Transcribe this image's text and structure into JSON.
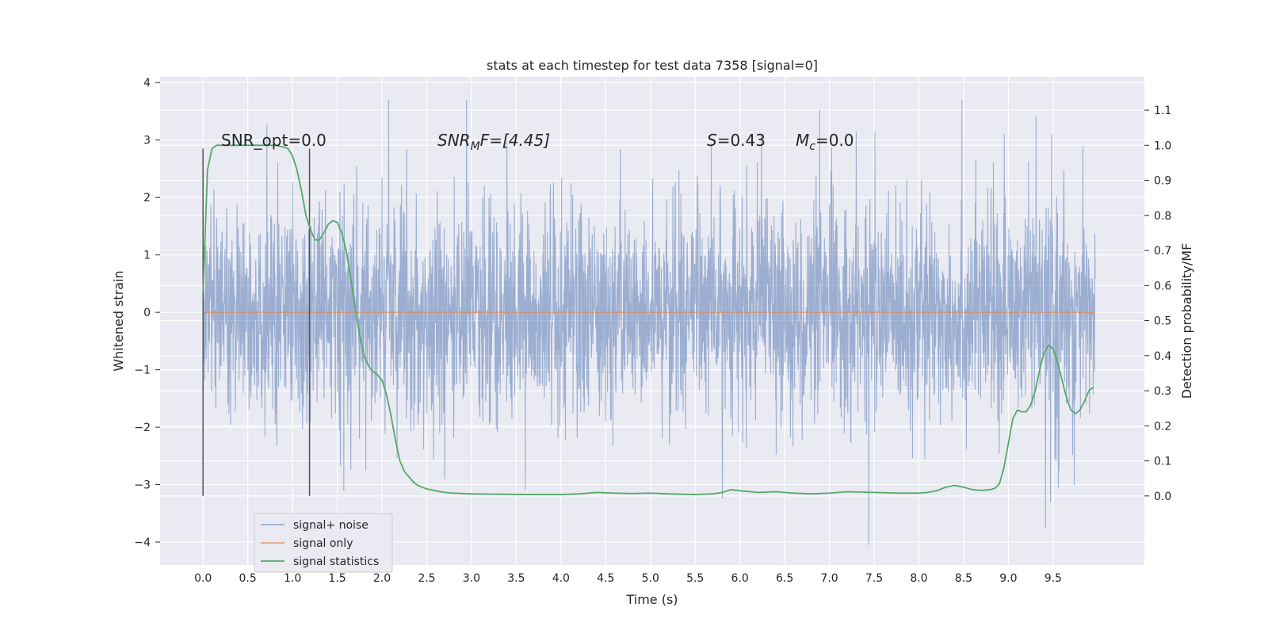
{
  "chart_data": {
    "type": "line",
    "title": "stats at each timestep for test data 7358 [signal=0]",
    "xlabel": "Time (s)",
    "ylabel": "Whitened strain",
    "y2label": "Detection probability/MF",
    "xlim": [
      -0.48,
      10.52
    ],
    "ylim": [
      -4.4,
      4.1
    ],
    "y2lim": [
      -0.197,
      1.195
    ],
    "x_ticks": [
      "0.0",
      "0.5",
      "1.0",
      "1.5",
      "2.0",
      "2.5",
      "3.0",
      "3.5",
      "4.0",
      "4.5",
      "5.0",
      "5.5",
      "6.0",
      "6.5",
      "7.0",
      "7.5",
      "8.0",
      "8.5",
      "9.0",
      "9.5"
    ],
    "y_ticks": [
      "4",
      "3",
      "2",
      "1",
      "0",
      "−1",
      "−2",
      "−3",
      "−4"
    ],
    "y2_ticks": [
      "1.1",
      "1.0",
      "0.9",
      "0.8",
      "0.7",
      "0.6",
      "0.5",
      "0.4",
      "0.3",
      "0.2",
      "0.1",
      "0.0"
    ],
    "grid": true,
    "legend_position": "lower-left",
    "colors": {
      "background": "#eaeaf2",
      "noise": "#4c72b0",
      "signal_only": "#dd8452",
      "statistics": "#55a868",
      "markers": "#555555"
    },
    "annotations": {
      "snr_opt": "SNR_opt=0.0",
      "snr_mf_prefix": "SNR",
      "snr_mf_sub": "M",
      "snr_mf_suffix": "F=[4.45]",
      "s_label": "S",
      "s_value": "=0.43",
      "mc_label": "M",
      "mc_sub": "c",
      "mc_value": "=0.0"
    },
    "vertical_markers": [
      {
        "x": 0.0,
        "ymin": -3.2,
        "ymax": 2.85
      },
      {
        "x": 1.19,
        "ymin": -3.2,
        "ymax": 2.85
      }
    ],
    "series": [
      {
        "name": "signal+ noise",
        "x_range": [
          0.0,
          9.97
        ],
        "envelope_typical": 1.6,
        "envelope_max": 3.7,
        "envelope_min": -4.05
      },
      {
        "name": "signal only",
        "x": [
          0.0,
          9.97
        ],
        "y": [
          0.0,
          0.0
        ]
      },
      {
        "name": "signal statistics",
        "axis": "right",
        "x": [
          0.0,
          0.05,
          0.1,
          0.15,
          0.2,
          0.3,
          0.4,
          0.5,
          0.6,
          0.7,
          0.8,
          0.9,
          0.95,
          1.0,
          1.05,
          1.1,
          1.15,
          1.2,
          1.25,
          1.3,
          1.35,
          1.4,
          1.45,
          1.5,
          1.55,
          1.6,
          1.65,
          1.7,
          1.75,
          1.8,
          1.85,
          1.9,
          1.95,
          2.0,
          2.05,
          2.1,
          2.15,
          2.2,
          2.25,
          2.3,
          2.35,
          2.4,
          2.5,
          2.6,
          2.7,
          2.8,
          3.0,
          3.3,
          3.7,
          4.0,
          4.2,
          4.4,
          4.6,
          4.8,
          5.0,
          5.2,
          5.5,
          5.7,
          5.8,
          5.9,
          6.0,
          6.2,
          6.4,
          6.6,
          6.8,
          7.0,
          7.2,
          7.5,
          7.8,
          8.0,
          8.1,
          8.2,
          8.3,
          8.4,
          8.5,
          8.6,
          8.7,
          8.8,
          8.85,
          8.9,
          8.95,
          9.0,
          9.05,
          9.1,
          9.15,
          9.2,
          9.25,
          9.3,
          9.35,
          9.4,
          9.45,
          9.5,
          9.55,
          9.6,
          9.65,
          9.7,
          9.75,
          9.8,
          9.85,
          9.9,
          9.95
        ],
        "y": [
          0.58,
          0.93,
          0.99,
          1.0,
          1.0,
          1.0,
          1.0,
          1.0,
          1.0,
          1.0,
          1.0,
          0.995,
          0.99,
          0.97,
          0.93,
          0.87,
          0.8,
          0.76,
          0.73,
          0.73,
          0.75,
          0.775,
          0.785,
          0.78,
          0.75,
          0.7,
          0.62,
          0.54,
          0.46,
          0.4,
          0.37,
          0.355,
          0.345,
          0.33,
          0.29,
          0.23,
          0.16,
          0.1,
          0.07,
          0.055,
          0.04,
          0.03,
          0.02,
          0.015,
          0.01,
          0.008,
          0.006,
          0.005,
          0.004,
          0.004,
          0.006,
          0.01,
          0.008,
          0.007,
          0.008,
          0.006,
          0.004,
          0.006,
          0.01,
          0.018,
          0.015,
          0.01,
          0.012,
          0.008,
          0.006,
          0.008,
          0.012,
          0.01,
          0.008,
          0.008,
          0.01,
          0.015,
          0.025,
          0.03,
          0.025,
          0.018,
          0.016,
          0.018,
          0.022,
          0.035,
          0.08,
          0.15,
          0.22,
          0.245,
          0.24,
          0.24,
          0.26,
          0.3,
          0.36,
          0.41,
          0.43,
          0.42,
          0.38,
          0.33,
          0.28,
          0.245,
          0.235,
          0.245,
          0.27,
          0.3,
          0.31
        ]
      }
    ]
  }
}
